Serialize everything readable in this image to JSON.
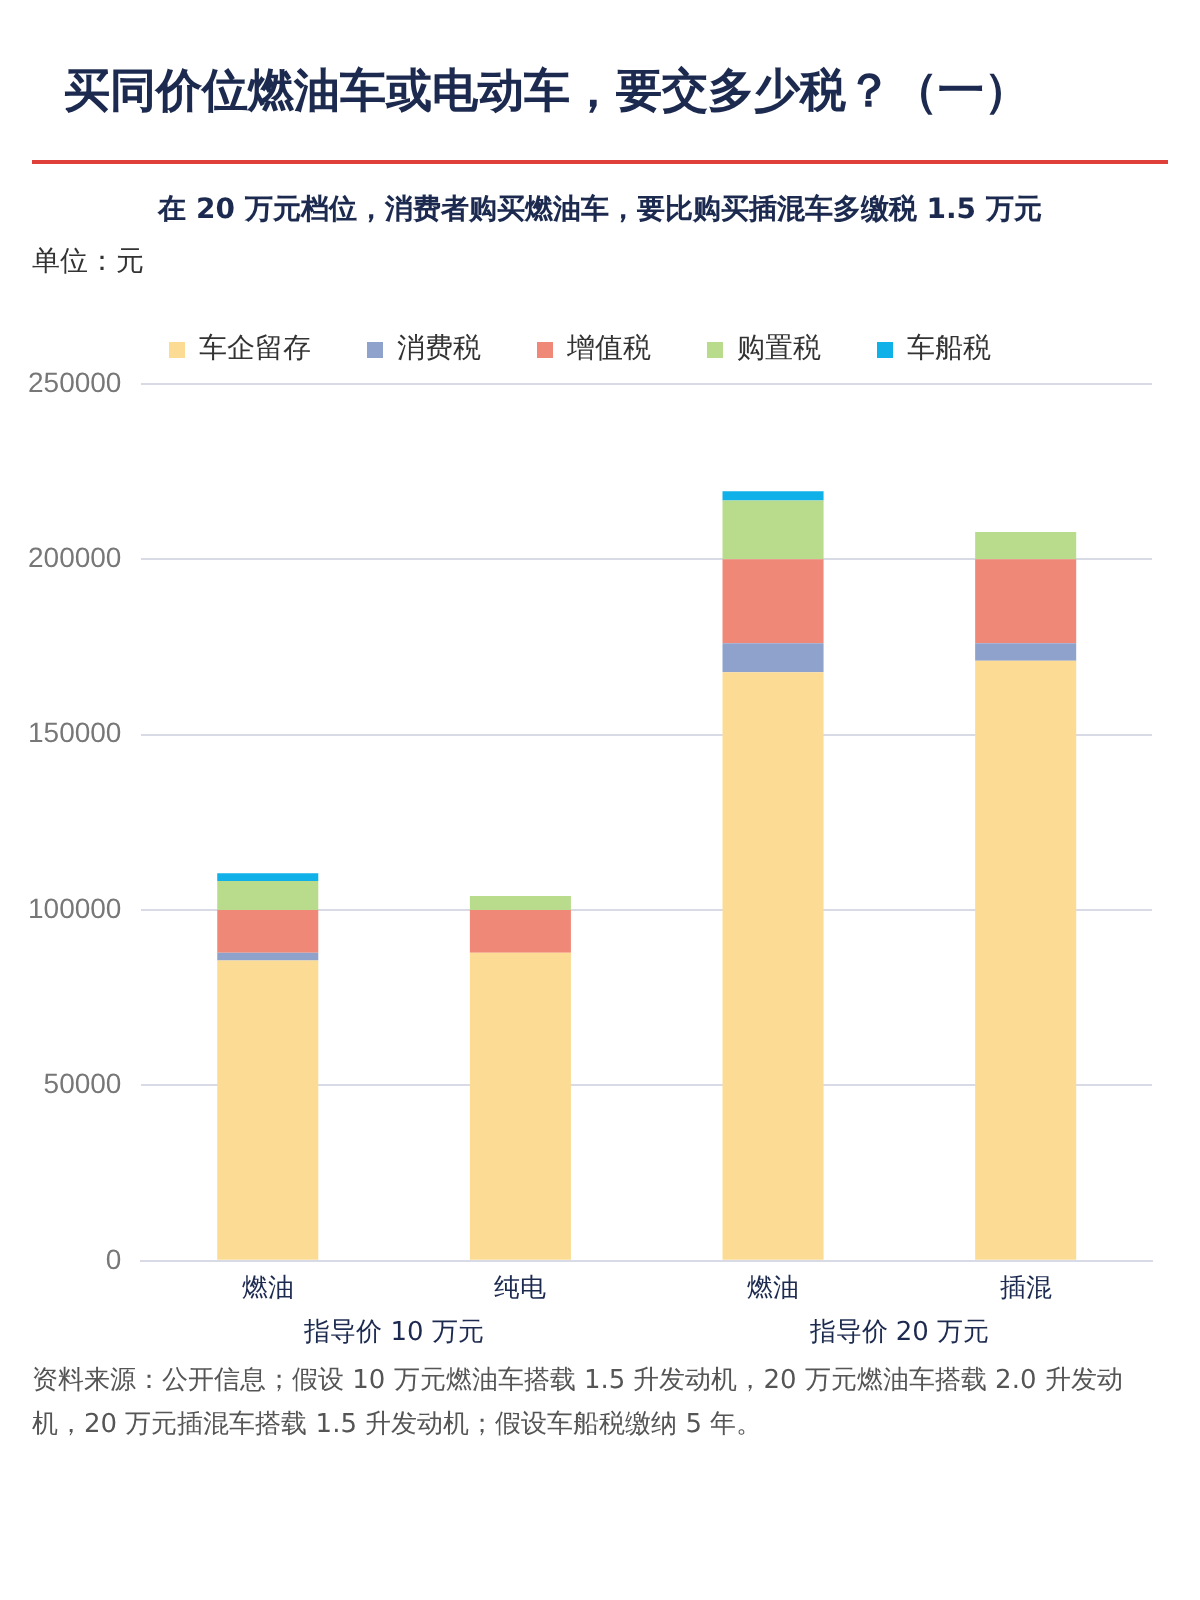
{
  "chart_data": {
    "type": "bar",
    "title": "买同价位燃油车或电动车，要交多少税？（一）",
    "subtitle": "在 20 万元档位，消费者购买燃油车，要比购买插混车多缴税 1.5 万元",
    "ylabel": "单位：元",
    "categories": [
      "燃油",
      "纯电",
      "燃油",
      "插混"
    ],
    "series": [
      {
        "name": "车企留存",
        "color": "#fcdc94",
        "values": [
          85600,
          87800,
          167800,
          171100
        ]
      },
      {
        "name": "消费税",
        "color": "#8fa2cc",
        "values": [
          2200,
          0,
          8300,
          5000
        ]
      },
      {
        "name": "增值税",
        "color": "#f08878",
        "values": [
          12200,
          12200,
          23900,
          23900
        ]
      },
      {
        "name": "购置税",
        "color": "#b8dc8c",
        "values": [
          8300,
          4000,
          16800,
          7800
        ]
      },
      {
        "name": "车船税",
        "color": "#10b0e8",
        "values": [
          2200,
          0,
          2600,
          0
        ]
      }
    ],
    "stacked": true,
    "ylim": [
      0,
      250000
    ],
    "yticks": [
      0,
      50000,
      100000,
      150000,
      200000,
      250000
    ],
    "grid": "y",
    "legend": "top",
    "annotations": [
      "指导价 10 万元",
      "指导价 20 万元",
      "资料来源：公开信息；假设 10 万元燃油车搭载 1.5 升发动机，20 万元燃油车搭载 2.0 升发动机，20 万元插混车搭载 1.5 升发动机；假设车船税缴纳 5 年。"
    ]
  }
}
